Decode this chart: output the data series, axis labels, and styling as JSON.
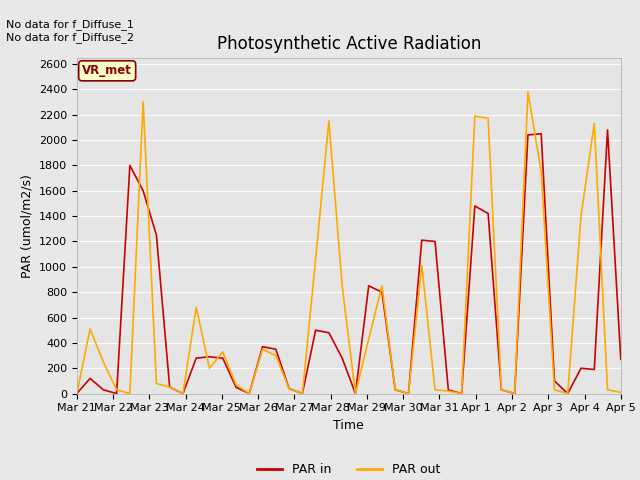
{
  "title": "Photosynthetic Active Radiation",
  "xlabel": "Time",
  "ylabel": "PAR (umol/m2/s)",
  "x_labels": [
    "Mar 21",
    "Mar 22",
    "Mar 23",
    "Mar 24",
    "Mar 25",
    "Mar 26",
    "Mar 27",
    "Mar 28",
    "Mar 29",
    "Mar 30",
    "Mar 31",
    "Apr 1",
    "Apr 2",
    "Apr 3",
    "Apr 4",
    "Apr 5"
  ],
  "par_in": [
    0,
    120,
    30,
    0,
    1800,
    1600,
    1250,
    50,
    0,
    280,
    290,
    280,
    50,
    0,
    370,
    350,
    40,
    0,
    500,
    480,
    280,
    0,
    850,
    800,
    30,
    0,
    1210,
    1200,
    30,
    0,
    1480,
    1420,
    30,
    0,
    2040,
    2050,
    100,
    0,
    200,
    190,
    2080,
    270
  ],
  "par_out": [
    0,
    510,
    250,
    30,
    0,
    2300,
    80,
    50,
    0,
    680,
    200,
    330,
    70,
    0,
    350,
    300,
    40,
    0,
    1060,
    2150,
    850,
    0,
    430,
    850,
    30,
    0,
    1010,
    30,
    20,
    0,
    2190,
    2170,
    30,
    0,
    2380,
    1750,
    30,
    0,
    1400,
    2130,
    30,
    10
  ],
  "par_in_color": "#cc0000",
  "par_out_color": "#ffaa00",
  "background_color": "#e8e8e8",
  "plot_bg_color": "#e5e5e5",
  "ylim": [
    0,
    2650
  ],
  "yticks": [
    0,
    200,
    400,
    600,
    800,
    1000,
    1200,
    1400,
    1600,
    1800,
    2000,
    2200,
    2400,
    2600
  ],
  "annotation_text": "No data for f_Diffuse_1\nNo data for f_Diffuse_2",
  "box_label": "VR_met",
  "box_color": "#ffffcc",
  "box_edge_color": "#8B0000",
  "title_fontsize": 12,
  "axis_fontsize": 9,
  "tick_fontsize": 8
}
